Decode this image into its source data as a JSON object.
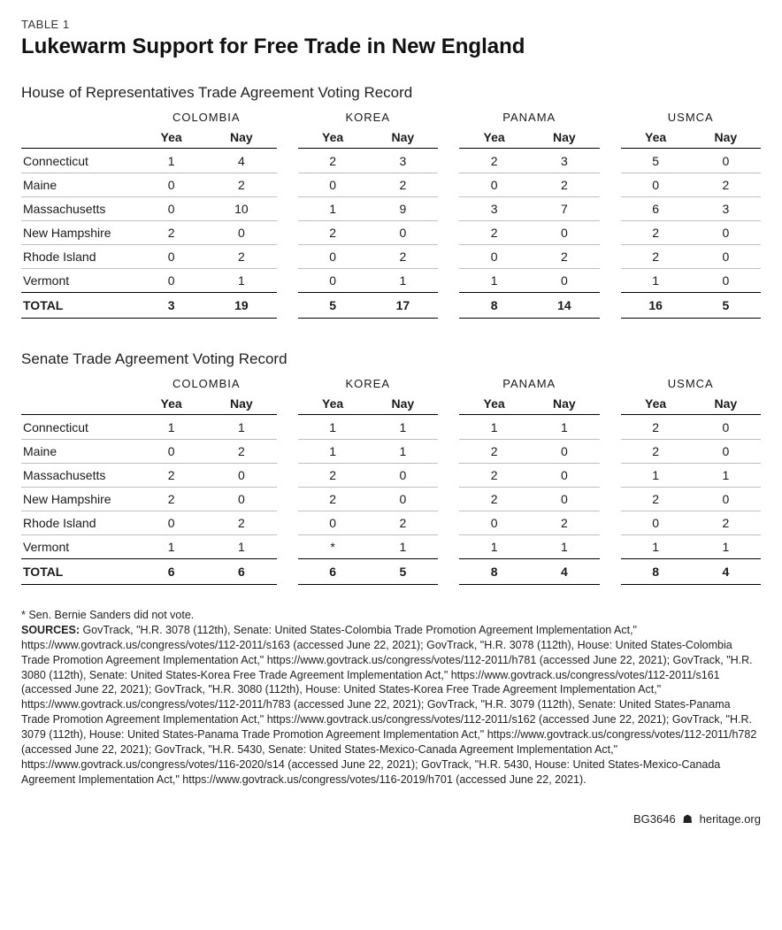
{
  "table_label": "TABLE 1",
  "main_title": "Lukewarm Support for Free Trade in New England",
  "agreements": [
    "COLOMBIA",
    "KOREA",
    "PANAMA",
    "USMCA"
  ],
  "vote_labels": {
    "yea": "Yea",
    "nay": "Nay"
  },
  "total_label": "TOTAL",
  "house": {
    "title": "House of Representatives Trade Agreement Voting Record",
    "rows": [
      {
        "state": "Connecticut",
        "v": [
          "1",
          "4",
          "2",
          "3",
          "2",
          "3",
          "5",
          "0"
        ]
      },
      {
        "state": "Maine",
        "v": [
          "0",
          "2",
          "0",
          "2",
          "0",
          "2",
          "0",
          "2"
        ]
      },
      {
        "state": "Massachusetts",
        "v": [
          "0",
          "10",
          "1",
          "9",
          "3",
          "7",
          "6",
          "3"
        ]
      },
      {
        "state": "New Hampshire",
        "v": [
          "2",
          "0",
          "2",
          "0",
          "2",
          "0",
          "2",
          "0"
        ]
      },
      {
        "state": "Rhode Island",
        "v": [
          "0",
          "2",
          "0",
          "2",
          "0",
          "2",
          "2",
          "0"
        ]
      },
      {
        "state": "Vermont",
        "v": [
          "0",
          "1",
          "0",
          "1",
          "1",
          "0",
          "1",
          "0"
        ]
      }
    ],
    "total": [
      "3",
      "19",
      "5",
      "17",
      "8",
      "14",
      "16",
      "5"
    ]
  },
  "senate": {
    "title": "Senate Trade Agreement Voting Record",
    "rows": [
      {
        "state": "Connecticut",
        "v": [
          "1",
          "1",
          "1",
          "1",
          "1",
          "1",
          "2",
          "0"
        ]
      },
      {
        "state": "Maine",
        "v": [
          "0",
          "2",
          "1",
          "1",
          "2",
          "0",
          "2",
          "0"
        ]
      },
      {
        "state": "Massachusetts",
        "v": [
          "2",
          "0",
          "2",
          "0",
          "2",
          "0",
          "1",
          "1"
        ]
      },
      {
        "state": "New Hampshire",
        "v": [
          "2",
          "0",
          "2",
          "0",
          "2",
          "0",
          "2",
          "0"
        ]
      },
      {
        "state": "Rhode Island",
        "v": [
          "0",
          "2",
          "0",
          "2",
          "0",
          "2",
          "0",
          "2"
        ]
      },
      {
        "state": "Vermont",
        "v": [
          "1",
          "1",
          "*",
          "1",
          "1",
          "1",
          "1",
          "1"
        ]
      }
    ],
    "total": [
      "6",
      "6",
      "6",
      "5",
      "8",
      "4",
      "8",
      "4"
    ]
  },
  "footnote_star": "* Sen. Bernie Sanders did not vote.",
  "sources_label": "SOURCES:",
  "sources_text": " GovTrack, \"H.R. 3078 (112th), Senate: United States-Colombia Trade Promotion Agreement Implementation Act,\" https://www.govtrack.us/congress/votes/112-2011/s163 (accessed June 22, 2021); GovTrack, \"H.R. 3078 (112th), House: United States-Colombia Trade Promotion Agreement Implementation Act,\" https://www.govtrack.us/congress/votes/112-2011/h781 (accessed June 22, 2021); GovTrack, \"H.R. 3080 (112th), Senate: United States-Korea Free Trade Agreement Implementation Act,\" https://www.govtrack.us/congress/votes/112-2011/s161 (accessed June 22, 2021); GovTrack, \"H.R. 3080 (112th), House: United States-Korea Free Trade Agreement Implementation Act,\" https://www.govtrack.us/congress/votes/112-2011/h783 (accessed June 22, 2021); GovTrack, \"H.R. 3079 (112th), Senate: United States-Panama Trade Promotion Agreement Implementation Act,\" https://www.govtrack.us/congress/votes/112-2011/s162 (accessed June 22, 2021); GovTrack, \"H.R. 3079 (112th), House: United States-Panama Trade Promotion Agreement Implementation Act,\" https://www.govtrack.us/congress/votes/112-2011/h782 (accessed June 22, 2021); GovTrack, \"H.R. 5430, Senate: United States-Mexico-Canada Agreement Implementation Act,\" https://www.govtrack.us/congress/votes/116-2020/s14 (accessed June 22, 2021); GovTrack, \"H.R. 5430, House: United States-Mexico-Canada Agreement Implementation Act,\" https://www.govtrack.us/congress/votes/116-2019/h701 (accessed June 22, 2021).",
  "footer_ref": "BG3646",
  "footer_icon": "☗",
  "footer_site": "heritage.org"
}
